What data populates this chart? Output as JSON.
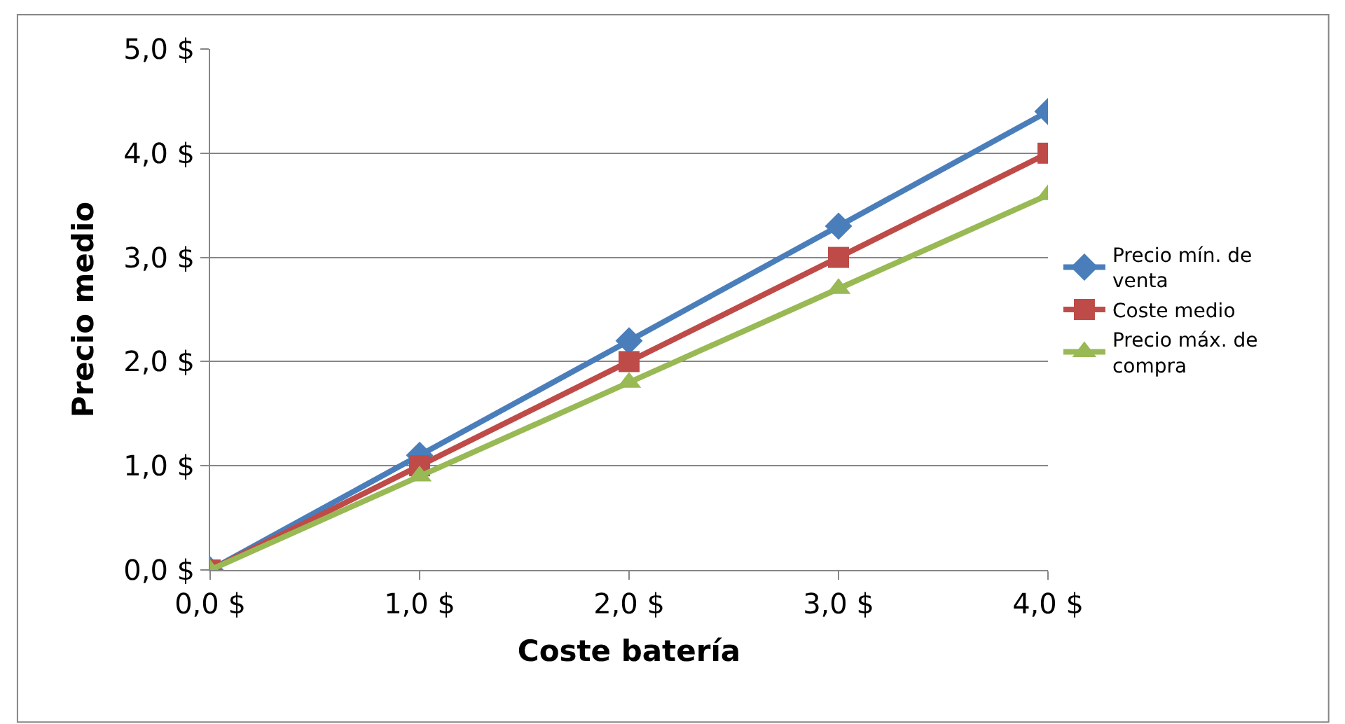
{
  "chart_data": {
    "type": "line",
    "xlabel": "Coste batería",
    "ylabel": "Precio medio",
    "x": [
      0,
      1,
      2,
      3,
      4
    ],
    "series": [
      {
        "name": "Precio mín. de venta",
        "color": "#4a7ebb",
        "marker": "diamond",
        "values": [
          0,
          1.1,
          2.2,
          3.3,
          4.4
        ]
      },
      {
        "name": "Coste medio",
        "color": "#be4b48",
        "marker": "square",
        "values": [
          0,
          1.0,
          2.0,
          3.0,
          4.0
        ]
      },
      {
        "name": "Precio máx. de compra",
        "color": "#98b954",
        "marker": "triangle",
        "values": [
          0,
          0.9,
          1.8,
          2.7,
          3.6
        ]
      }
    ],
    "xlim": [
      0,
      4
    ],
    "xticks": [
      {
        "value": 0,
        "label": "0,0 $"
      },
      {
        "value": 1,
        "label": "1,0 $"
      },
      {
        "value": 2,
        "label": "2,0 $"
      },
      {
        "value": 3,
        "label": "3,0 $"
      },
      {
        "value": 4,
        "label": "4,0 $"
      }
    ],
    "ylim": [
      0,
      5
    ],
    "yticks": [
      {
        "value": 0,
        "label": "0,0 $"
      },
      {
        "value": 1,
        "label": "1,0 $"
      },
      {
        "value": 2,
        "label": "2,0 $"
      },
      {
        "value": 3,
        "label": "3,0 $"
      },
      {
        "value": 4,
        "label": "4,0 $"
      },
      {
        "value": 5,
        "label": "5,0 $"
      }
    ],
    "grid": "y",
    "legend": "right",
    "line_style": "solid"
  }
}
